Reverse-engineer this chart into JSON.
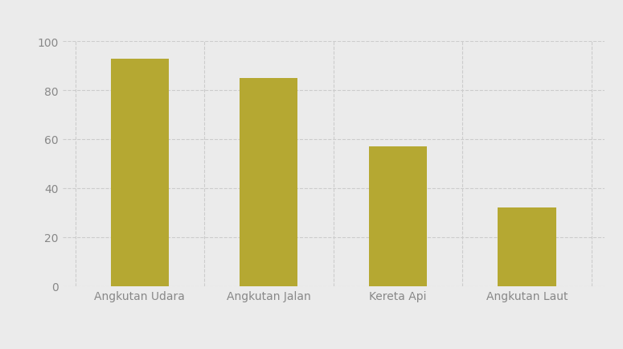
{
  "categories": [
    "Angkutan Udara",
    "Angkutan Jalan",
    "Kereta Api",
    "Angkutan Laut"
  ],
  "values": [
    93,
    85,
    57,
    32
  ],
  "bar_color": "#b5a832",
  "background_color": "#ebebeb",
  "ylim": [
    0,
    100
  ],
  "yticks": [
    0,
    20,
    40,
    60,
    80,
    100
  ],
  "tick_label_color": "#888888",
  "grid_color": "#cccccc",
  "tick_fontsize": 10,
  "bar_width": 0.45
}
